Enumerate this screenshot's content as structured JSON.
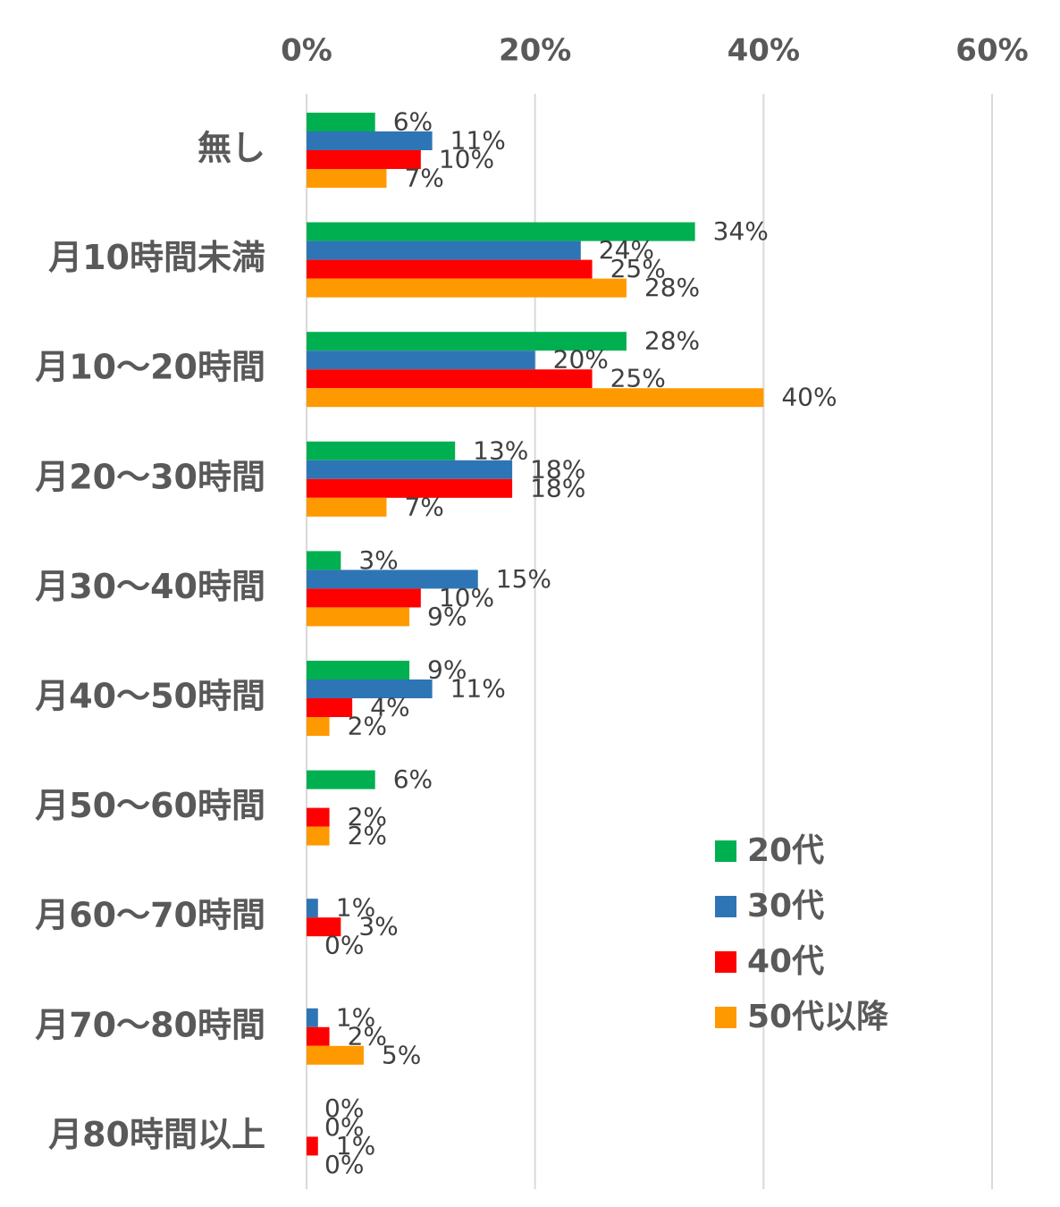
{
  "chart_data": {
    "type": "bar",
    "orientation": "horizontal",
    "categories": [
      "無し",
      "月10時間未満",
      "月10〜20時間",
      "月20〜30時間",
      "月30〜40時間",
      "月40〜50時間",
      "月50〜60時間",
      "月60〜70時間",
      "月70〜80時間",
      "月80時間以上"
    ],
    "series": [
      {
        "name": "20代",
        "color": "#00b050",
        "values": [
          6,
          34,
          28,
          13,
          3,
          9,
          6,
          null,
          null,
          0
        ]
      },
      {
        "name": "30代",
        "color": "#2e75b6",
        "values": [
          11,
          24,
          20,
          18,
          15,
          11,
          null,
          1,
          1,
          0
        ]
      },
      {
        "name": "40代",
        "color": "#ff0000",
        "values": [
          10,
          25,
          25,
          18,
          10,
          4,
          2,
          3,
          2,
          1
        ]
      },
      {
        "name": "50代以降",
        "color": "#ff9900",
        "values": [
          7,
          28,
          40,
          7,
          9,
          2,
          2,
          0,
          5,
          0
        ]
      }
    ],
    "xaxis": {
      "position": "top",
      "ticks": [
        0,
        20,
        40,
        60
      ],
      "tick_labels": [
        "0%",
        "20%",
        "40%",
        "60%"
      ],
      "range": [
        0,
        60
      ]
    },
    "value_suffix": "%",
    "grid": true,
    "legend_position": "bottom-right",
    "data_labels": true
  }
}
